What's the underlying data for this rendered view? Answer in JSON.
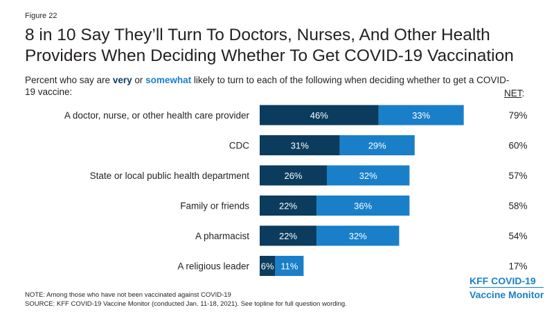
{
  "figure_label": "Figure 22",
  "chart_data": {
    "type": "bar",
    "orientation": "horizontal",
    "stacked": true,
    "title": "8 in 10 Say They’ll Turn To Doctors, Nurses, And Other Health Providers When Deciding Whether To Get COVID-19 Vaccination",
    "subtitle_before": "Percent who say are ",
    "subtitle_very": "very",
    "subtitle_or": " or ",
    "subtitle_somewhat": "somewhat",
    "subtitle_after": " likely to turn to each of the following when deciding whether to get a COVID-19 vaccine:",
    "net_header": "NET",
    "net_header_suffix": ":",
    "categories": [
      "A doctor, nurse, or other health care provider",
      "CDC",
      "State or local public health department",
      "Family or friends",
      "A pharmacist",
      "A religious leader"
    ],
    "series": [
      {
        "name": "very",
        "values": [
          46,
          31,
          26,
          22,
          22,
          6
        ],
        "color": "#0b3c5d"
      },
      {
        "name": "somewhat",
        "values": [
          33,
          29,
          32,
          36,
          32,
          11
        ],
        "color": "#1a7fc9"
      }
    ],
    "net": [
      79,
      60,
      57,
      58,
      54,
      17
    ],
    "value_suffix": "%",
    "xlim": [
      0,
      100
    ],
    "grid": false,
    "legend": "none"
  },
  "notes": {
    "note": "NOTE: Among those who have not been vaccinated against COVID-19",
    "source": "SOURCE: KFF COVID-19 Vaccine Monitor (conducted Jan. 11-18, 2021). See topline for full question wording."
  },
  "logo": {
    "line1": "KFF COVID-19",
    "line2": "Vaccine Monitor"
  }
}
